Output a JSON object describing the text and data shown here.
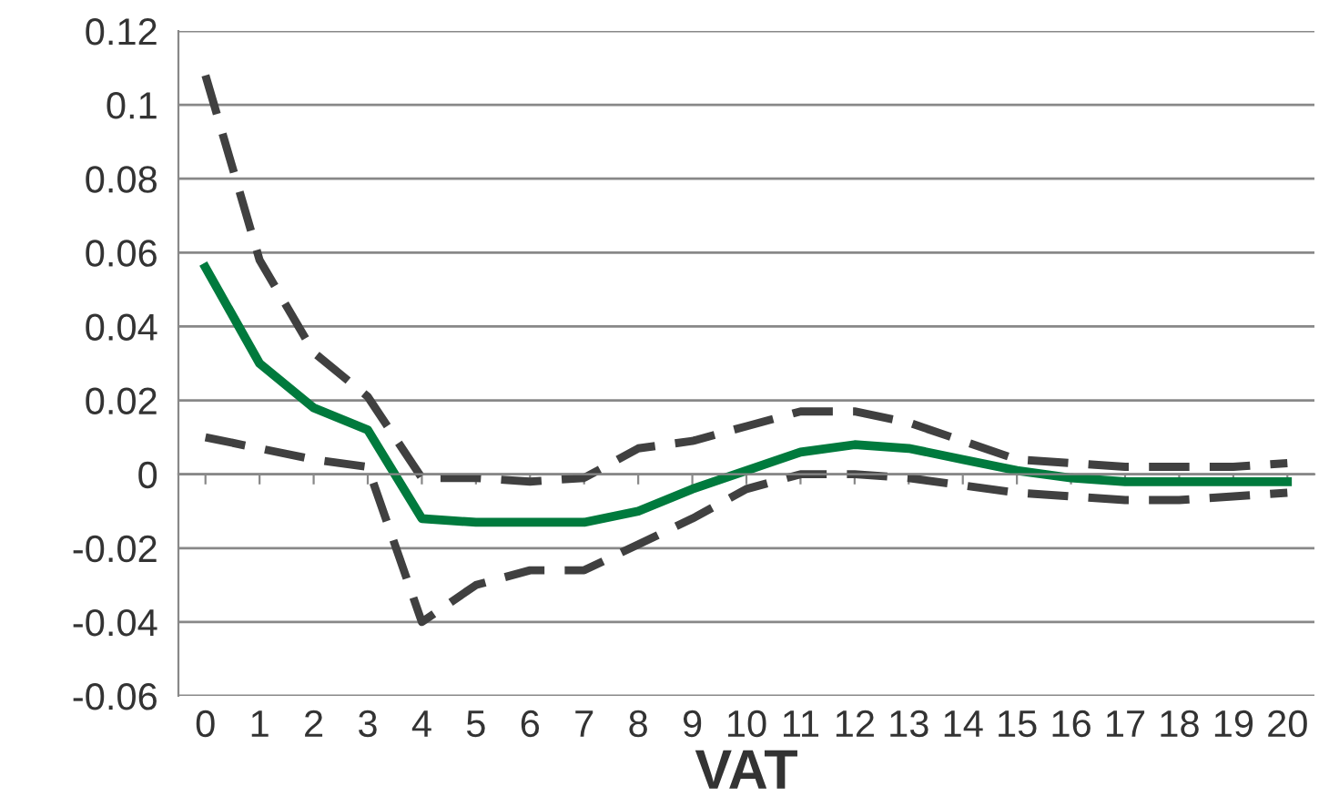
{
  "chart_data": {
    "type": "line",
    "title": "VAT",
    "categories": [
      "0",
      "1",
      "2",
      "3",
      "4",
      "5",
      "6",
      "7",
      "8",
      "9",
      "10",
      "11",
      "12",
      "13",
      "14",
      "15",
      "16",
      "17",
      "18",
      "19",
      "20"
    ],
    "series": [
      {
        "color": "#404040",
        "line_style": "dashed",
        "values": [
          0.108,
          0.058,
          0.033,
          0.021,
          -0.001,
          -0.001,
          -0.002,
          -0.001,
          0.007,
          0.009,
          0.013,
          0.017,
          0.017,
          0.014,
          0.009,
          0.004,
          0.003,
          0.002,
          0.002,
          0.002,
          0.003
        ]
      },
      {
        "color": "#404040",
        "line_style": "dashed",
        "values": [
          0.01,
          0.007,
          0.004,
          0.002,
          -0.04,
          -0.03,
          -0.026,
          -0.026,
          -0.019,
          -0.012,
          -0.004,
          0.0,
          0.0,
          -0.001,
          -0.003,
          -0.005,
          -0.006,
          -0.007,
          -0.007,
          -0.006,
          -0.005
        ]
      },
      {
        "color": "#007a3d",
        "line_style": "solid",
        "values": [
          0.056,
          0.03,
          0.018,
          0.012,
          -0.012,
          -0.013,
          -0.013,
          -0.013,
          -0.01,
          -0.004,
          0.001,
          0.006,
          0.008,
          0.007,
          0.004,
          0.001,
          -0.001,
          -0.002,
          -0.002,
          -0.002,
          -0.002
        ]
      }
    ],
    "ylim": [
      -0.06,
      0.12
    ],
    "yticks": [
      {
        "value": -0.06,
        "label": "-0.06"
      },
      {
        "value": -0.04,
        "label": "-0.04"
      },
      {
        "value": -0.02,
        "label": "-0.02"
      },
      {
        "value": 0,
        "label": "0"
      },
      {
        "value": 0.02,
        "label": "0.02"
      },
      {
        "value": 0.04,
        "label": "0.04"
      },
      {
        "value": 0.06,
        "label": "0.06"
      },
      {
        "value": 0.08,
        "label": "0.08"
      },
      {
        "value": 0.1,
        "label": "0.1"
      },
      {
        "value": 0.12,
        "label": "0.12"
      }
    ],
    "grid": "y",
    "marker": "none"
  }
}
